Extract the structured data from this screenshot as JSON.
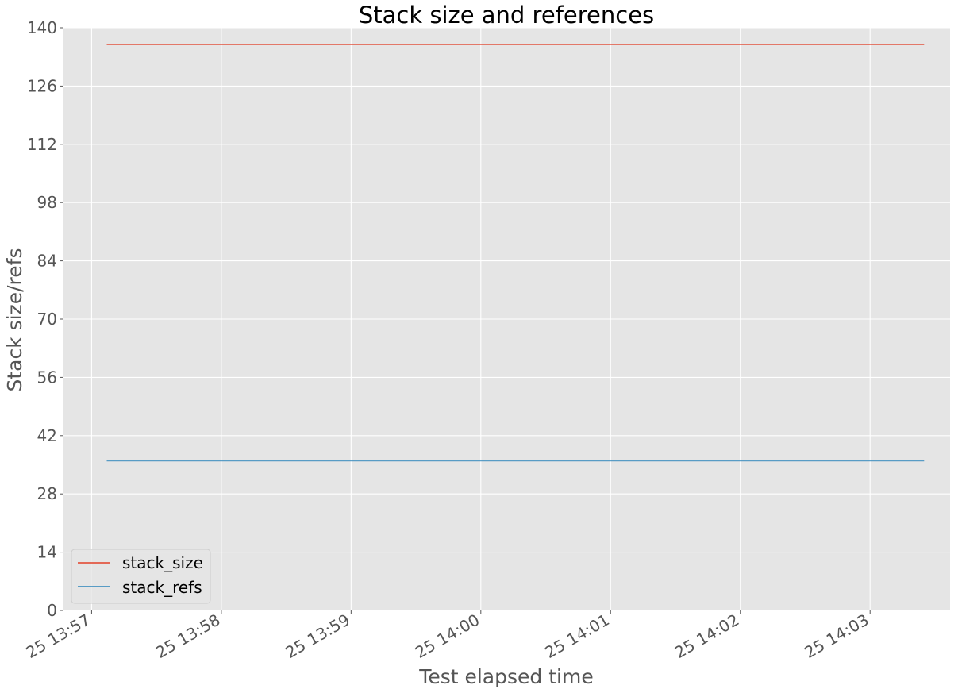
{
  "chart_data": {
    "type": "line",
    "title": "Stack size and references",
    "xlabel": "Test elapsed time",
    "ylabel": "Stack size/refs",
    "x_ticks": [
      "25 13:57",
      "25 13:58",
      "25 13:59",
      "25 14:00",
      "25 14:01",
      "25 14:02",
      "25 14:03"
    ],
    "x_range": [
      "13:56:47",
      "14:03:37"
    ],
    "y_ticks": [
      0,
      14,
      28,
      42,
      56,
      70,
      84,
      98,
      112,
      126,
      140
    ],
    "ylim": [
      0,
      140
    ],
    "grid": true,
    "legend_position": "lower-left",
    "series": [
      {
        "name": "stack_size",
        "color": "#E24A33",
        "points": [
          {
            "x": "13:57:07",
            "y": 136
          },
          {
            "x": "14:03:25",
            "y": 136
          }
        ]
      },
      {
        "name": "stack_refs",
        "color": "#348ABD",
        "points": [
          {
            "x": "13:57:07",
            "y": 36
          },
          {
            "x": "14:03:25",
            "y": 36
          }
        ]
      }
    ]
  },
  "style": {
    "plot_background": "#E5E5E5",
    "grid_color": "#FFFFFF"
  }
}
